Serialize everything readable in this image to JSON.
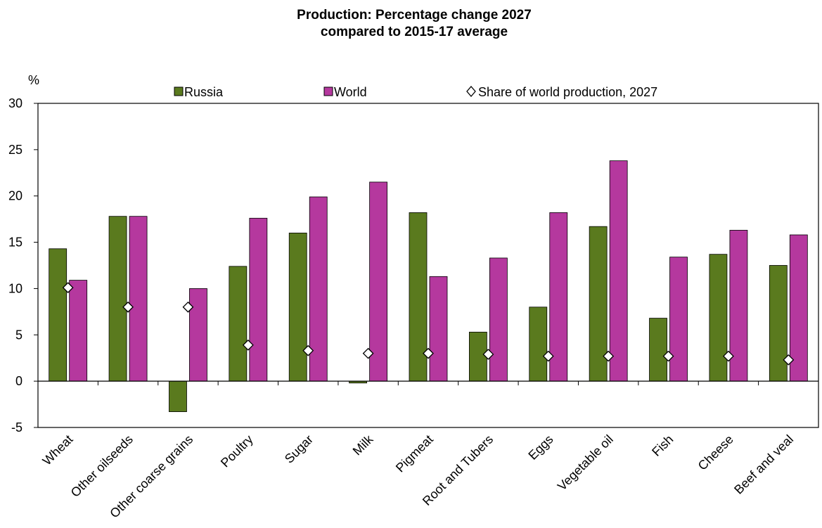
{
  "chart_data": {
    "type": "bar",
    "title": "Production: Percentage change 2027",
    "subtitle": "compared to 2015-17 average",
    "ylabel": "%",
    "ylim": [
      -5,
      30
    ],
    "yticks": [
      30,
      25,
      20,
      15,
      10,
      5,
      0,
      -5
    ],
    "legend_position": "top",
    "categories": [
      "Wheat",
      "Other oilseeds",
      "Other coarse grains",
      "Poultry",
      "Sugar",
      "Milk",
      "Pigmeat",
      "Root and Tubers",
      "Eggs",
      "Vegetable oil",
      "Fish",
      "Cheese",
      "Beef and veal"
    ],
    "series": [
      {
        "name": "Russia",
        "color": "#5a7a1e",
        "values": [
          14.3,
          17.8,
          -3.3,
          12.4,
          16.0,
          -0.2,
          18.2,
          5.3,
          8.0,
          16.7,
          6.8,
          13.7,
          12.5
        ]
      },
      {
        "name": "World",
        "color": "#b5389e",
        "values": [
          10.9,
          17.8,
          10.0,
          17.6,
          19.9,
          21.5,
          11.3,
          13.3,
          18.2,
          23.8,
          13.4,
          16.3,
          15.8
        ]
      }
    ],
    "markers": {
      "name": "Share of world production, 2027",
      "shape": "diamond",
      "values": [
        10.1,
        8.0,
        8.0,
        3.9,
        3.3,
        3.0,
        3.0,
        2.9,
        2.7,
        2.7,
        2.7,
        2.7,
        2.3
      ]
    }
  }
}
